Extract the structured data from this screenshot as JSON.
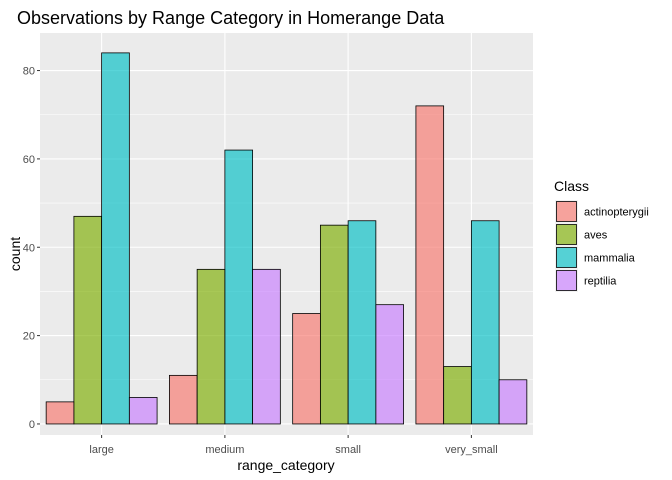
{
  "chart_data": {
    "type": "bar",
    "title": "Observations by Range Category in Homerange Data",
    "xlabel": "range_category",
    "ylabel": "count",
    "categories": [
      "large",
      "medium",
      "small",
      "very_small"
    ],
    "series": [
      {
        "name": "actinopterygii",
        "values": [
          5,
          11,
          25,
          72
        ],
        "color": "#F8766D"
      },
      {
        "name": "aves",
        "values": [
          47,
          35,
          45,
          13
        ],
        "color": "#7CAE00"
      },
      {
        "name": "mammalia",
        "values": [
          84,
          62,
          46,
          46
        ],
        "color": "#00BFC4"
      },
      {
        "name": "reptilia",
        "values": [
          6,
          35,
          27,
          10
        ],
        "color": "#C77CFF"
      }
    ],
    "ylim": [
      -2.5,
      88.5
    ],
    "yticks": [
      0,
      20,
      40,
      60,
      80
    ],
    "legend_title": "Class",
    "legend_position": "right",
    "grid": true,
    "bar_alpha": 0.65,
    "panel_background": "#EBEBEB"
  }
}
